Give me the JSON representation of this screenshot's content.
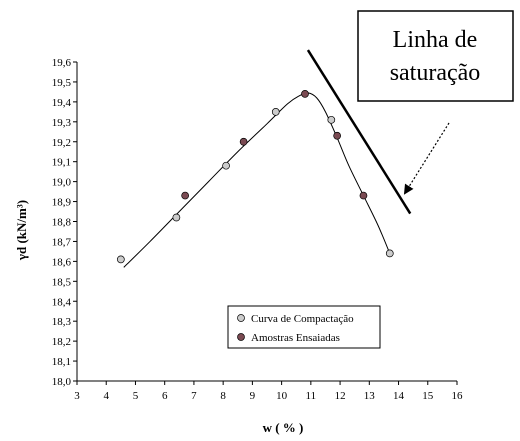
{
  "chart_data": {
    "type": "scatter",
    "xlabel": "w ( % )",
    "ylabel": "γd (kN/m³)",
    "xlim": [
      3,
      16
    ],
    "ylim": [
      18.0,
      19.6
    ],
    "x_ticks": [
      "3",
      "4",
      "5",
      "6",
      "7",
      "8",
      "9",
      "10",
      "11",
      "12",
      "13",
      "14",
      "15",
      "16"
    ],
    "y_ticks": [
      "18,0",
      "18,1",
      "18,2",
      "18,3",
      "18,4",
      "18,5",
      "18,6",
      "18,7",
      "18,8",
      "18,9",
      "19,0",
      "19,1",
      "19,2",
      "19,3",
      "19,4",
      "19,5",
      "19,6"
    ],
    "legend_position": "inside-bottom-center",
    "series": [
      {
        "name": "Curva de Compactação",
        "marker_color": "#cccccc",
        "points": [
          {
            "x": 4.5,
            "y": 18.61
          },
          {
            "x": 6.4,
            "y": 18.82
          },
          {
            "x": 8.1,
            "y": 19.08
          },
          {
            "x": 9.8,
            "y": 19.35
          },
          {
            "x": 11.7,
            "y": 19.31
          },
          {
            "x": 13.7,
            "y": 18.64
          }
        ]
      },
      {
        "name": "Amostras Ensaiadas",
        "marker_color": "#7a4a52",
        "points": [
          {
            "x": 6.7,
            "y": 18.93
          },
          {
            "x": 8.7,
            "y": 19.2
          },
          {
            "x": 10.8,
            "y": 19.44
          },
          {
            "x": 11.9,
            "y": 19.23
          },
          {
            "x": 12.8,
            "y": 18.93
          }
        ]
      }
    ],
    "fitted_curve": [
      {
        "x": 4.6,
        "y": 18.57
      },
      {
        "x": 5.5,
        "y": 18.7
      },
      {
        "x": 6.5,
        "y": 18.85
      },
      {
        "x": 7.5,
        "y": 19.0
      },
      {
        "x": 8.5,
        "y": 19.15
      },
      {
        "x": 9.5,
        "y": 19.29
      },
      {
        "x": 10.2,
        "y": 19.39
      },
      {
        "x": 10.6,
        "y": 19.43
      },
      {
        "x": 10.9,
        "y": 19.445
      },
      {
        "x": 11.2,
        "y": 19.42
      },
      {
        "x": 11.5,
        "y": 19.35
      },
      {
        "x": 11.9,
        "y": 19.22
      },
      {
        "x": 12.3,
        "y": 19.08
      },
      {
        "x": 12.8,
        "y": 18.93
      },
      {
        "x": 13.3,
        "y": 18.78
      },
      {
        "x": 13.7,
        "y": 18.64
      }
    ],
    "saturation_line": [
      {
        "x": 10.9,
        "y": 19.66
      },
      {
        "x": 14.4,
        "y": 18.84
      }
    ],
    "annotation": {
      "lines": [
        "Linha de",
        "saturação"
      ]
    }
  }
}
